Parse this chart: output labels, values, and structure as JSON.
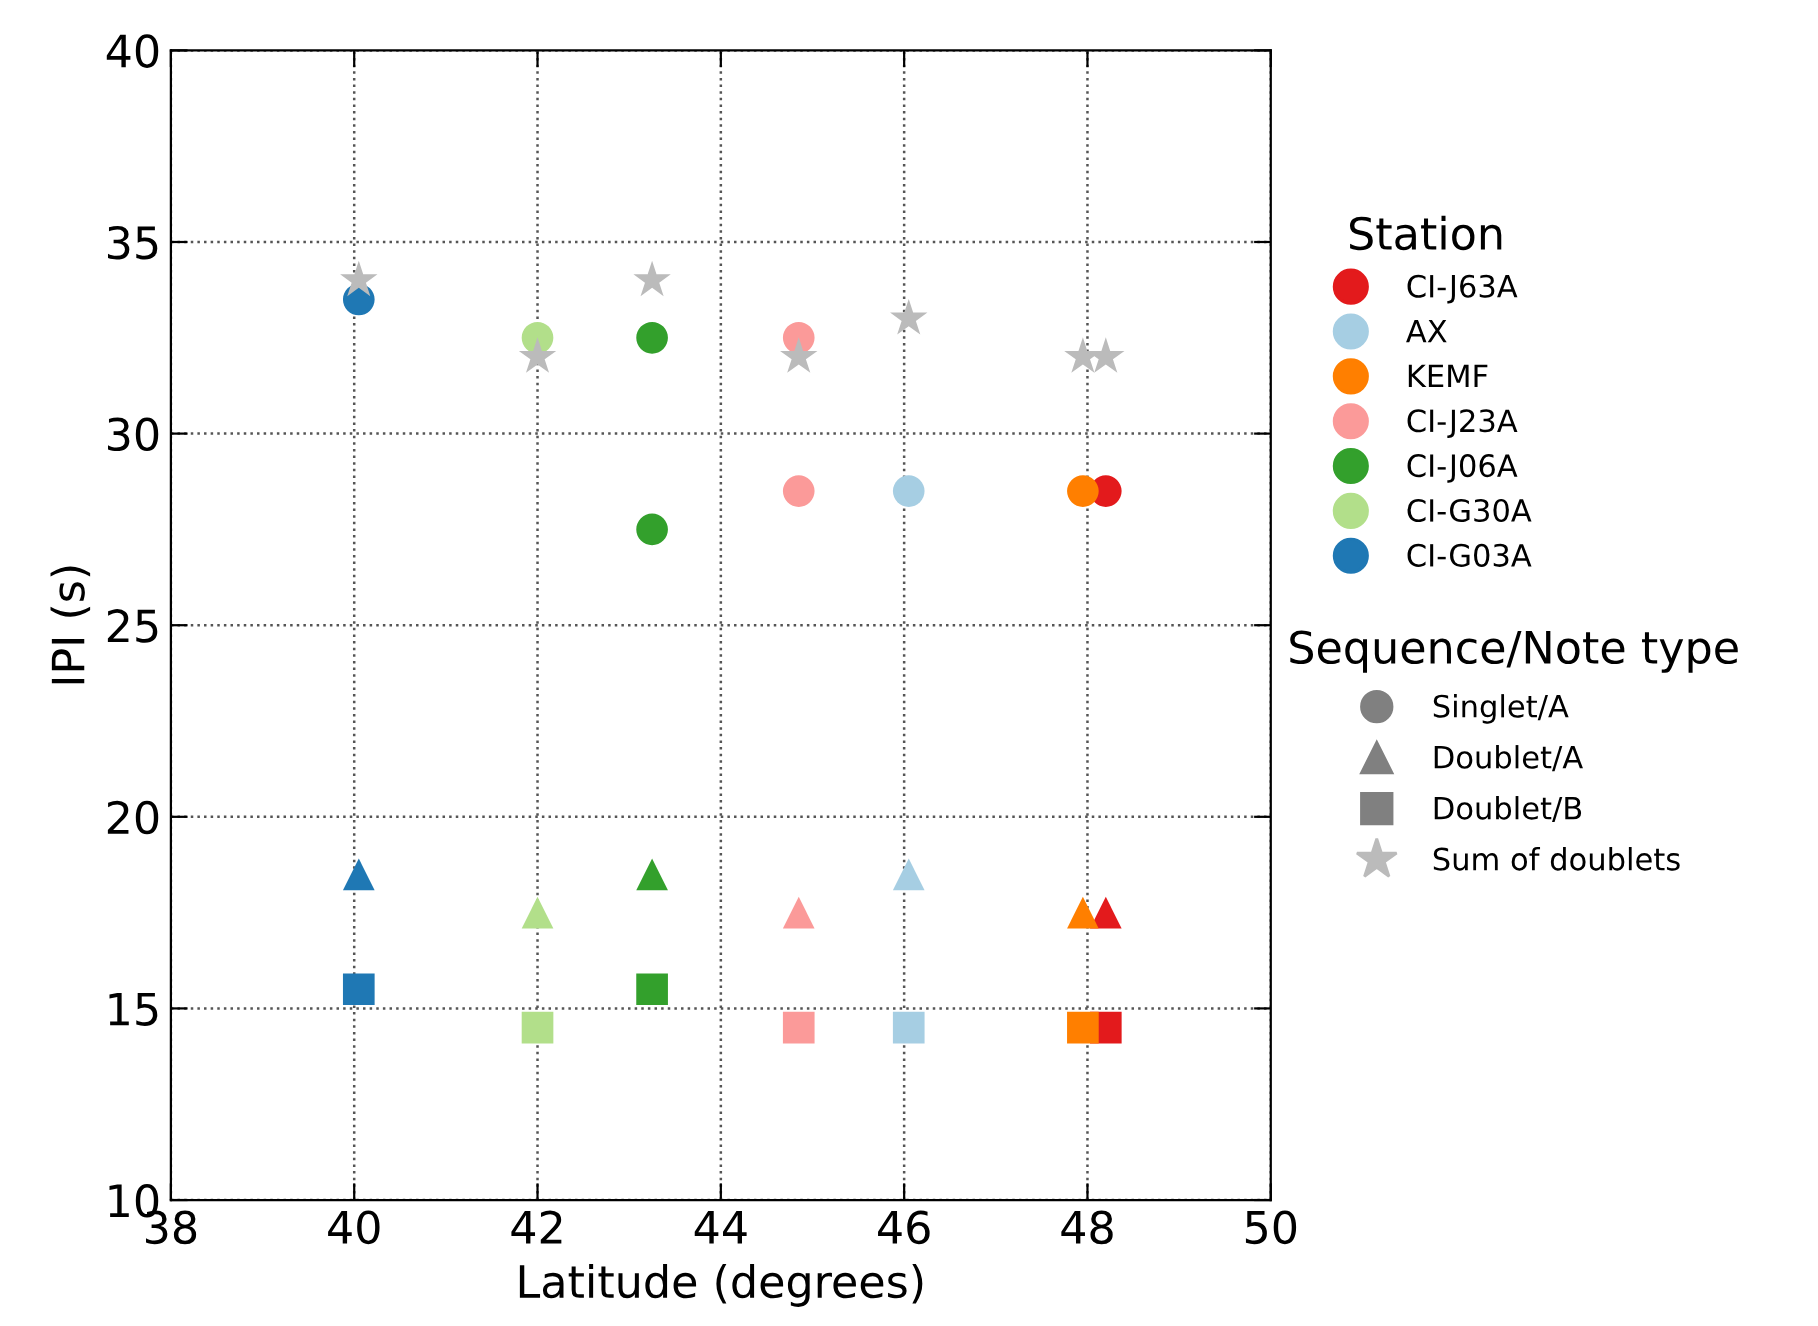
{
  "chart_data": {
    "type": "scatter",
    "xlabel": "Latitude (degrees)",
    "ylabel": "IPI (s)",
    "xlim": [
      38,
      50
    ],
    "xticks": [
      38,
      40,
      42,
      44,
      46,
      48,
      50
    ],
    "ylim": [
      10,
      40
    ],
    "yticks": [
      10,
      15,
      20,
      25,
      30,
      35,
      40
    ],
    "grid": true,
    "legend": "right",
    "legend_title": [
      "Station",
      "Sequence/Note type"
    ],
    "annotations": [
      "Singlet/A",
      "Doublet/A",
      "Doublet/B"
    ],
    "series": [
      {
        "name": "CI-J63A",
        "color": "#e31a1c",
        "marker": "circle",
        "x": [
          48.2
        ],
        "values": [
          28.5
        ]
      },
      {
        "color": "#e31a1c",
        "marker": "triangle",
        "x": [
          48.2
        ],
        "values": [
          17.5
        ]
      },
      {
        "color": "#e31a1c",
        "marker": "square",
        "x": [
          48.2
        ],
        "values": [
          14.5
        ]
      },
      {
        "name": "AX",
        "color": "#a6cee3",
        "marker": "circle",
        "x": [
          46.05
        ],
        "values": [
          28.5
        ]
      },
      {
        "color": "#a6cee3",
        "marker": "triangle",
        "x": [
          46.05
        ],
        "values": [
          18.5
        ]
      },
      {
        "color": "#a6cee3",
        "marker": "square",
        "x": [
          46.05
        ],
        "values": [
          14.5
        ]
      },
      {
        "name": "KEMF",
        "color": "#ff7f00",
        "marker": "circle",
        "x": [
          47.95
        ],
        "values": [
          28.5
        ]
      },
      {
        "color": "#ff7f00",
        "marker": "triangle",
        "x": [
          47.95
        ],
        "values": [
          17.5
        ]
      },
      {
        "color": "#ff7f00",
        "marker": "square",
        "x": [
          47.95
        ],
        "values": [
          14.5
        ]
      },
      {
        "name": "CI-J23A",
        "color": "#fb9a99",
        "marker": "circle",
        "x": [
          44.85,
          44.85
        ],
        "values": [
          32.5,
          28.5
        ]
      },
      {
        "color": "#fb9a99",
        "marker": "triangle",
        "x": [
          44.85
        ],
        "values": [
          17.5
        ]
      },
      {
        "color": "#fb9a99",
        "marker": "square",
        "x": [
          44.85
        ],
        "values": [
          14.5
        ]
      },
      {
        "name": "CI-J06A",
        "color": "#33a02c",
        "marker": "circle",
        "x": [
          43.25,
          43.25
        ],
        "values": [
          32.5,
          27.5
        ]
      },
      {
        "color": "#33a02c",
        "marker": "triangle",
        "x": [
          43.25
        ],
        "values": [
          18.5
        ]
      },
      {
        "color": "#33a02c",
        "marker": "square",
        "x": [
          43.25
        ],
        "values": [
          15.5
        ]
      },
      {
        "name": "CI-G30A",
        "color": "#b2df8a",
        "marker": "circle",
        "x": [
          42.0
        ],
        "values": [
          32.5
        ]
      },
      {
        "color": "#b2df8a",
        "marker": "triangle",
        "x": [
          42.0
        ],
        "values": [
          17.5
        ]
      },
      {
        "color": "#b2df8a",
        "marker": "square",
        "x": [
          42.0
        ],
        "values": [
          14.5
        ]
      },
      {
        "name": "CI-G03A",
        "color": "#1f78b4",
        "marker": "circle",
        "x": [
          40.05
        ],
        "values": [
          33.5
        ]
      },
      {
        "color": "#1f78b4",
        "marker": "triangle",
        "x": [
          40.05
        ],
        "values": [
          18.5
        ]
      },
      {
        "color": "#1f78b4",
        "marker": "square",
        "x": [
          40.05
        ],
        "values": [
          15.5
        ]
      },
      {
        "name": "Sum of doublets",
        "color": "#bbbbbb",
        "marker": "star",
        "x": [
          40.05,
          42.0,
          43.25,
          44.85,
          46.05,
          47.95,
          48.2
        ],
        "values": [
          34,
          32,
          34,
          32,
          33,
          32,
          32
        ]
      }
    ]
  }
}
